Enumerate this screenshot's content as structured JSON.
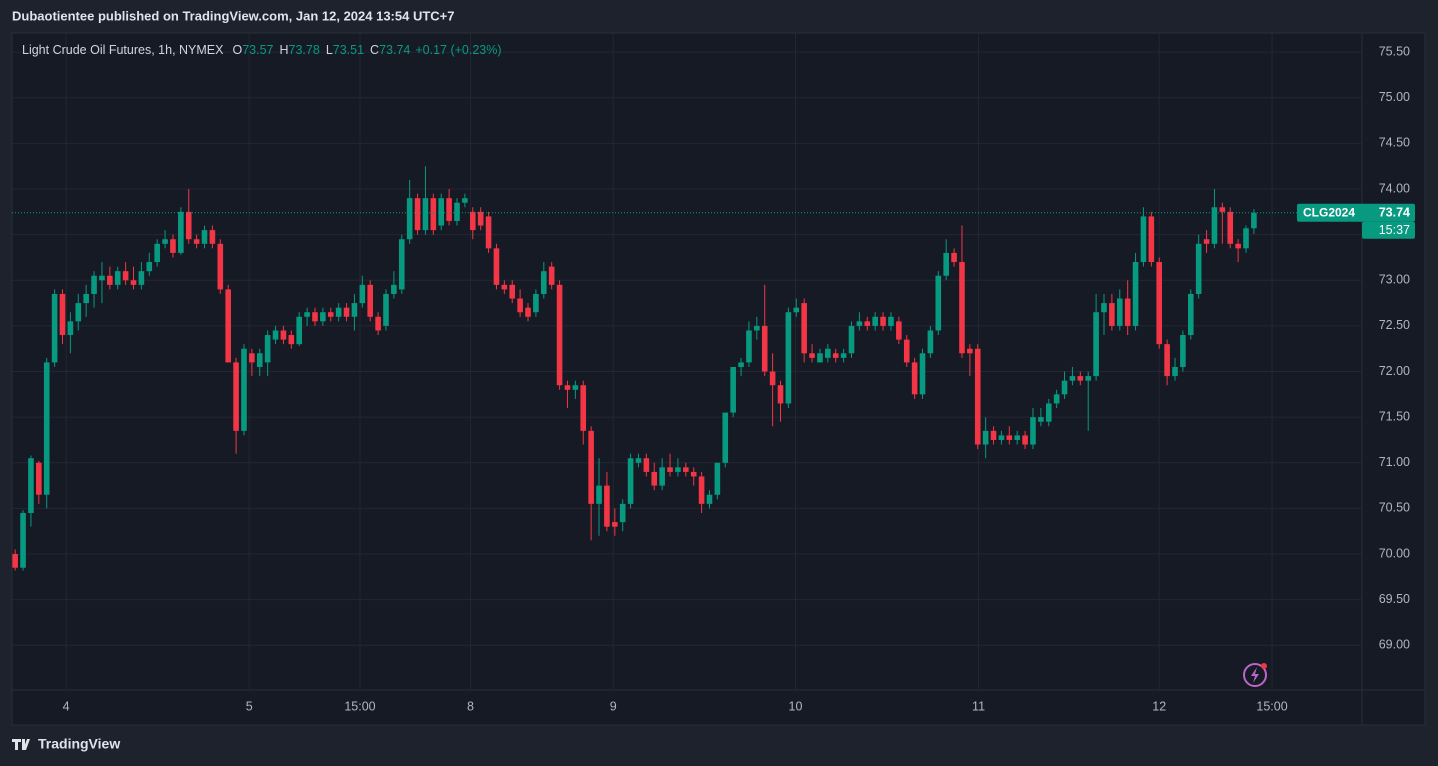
{
  "header": "Dubaotientee published on TradingView.com, Jan 12, 2024 13:54 UTC+7",
  "footer": "TradingView",
  "chart_data": {
    "type": "candlestick",
    "title": "Light Crude Oil Futures, 1h, NYMEX",
    "ohlc_labels": [
      "O",
      "H",
      "L",
      "C"
    ],
    "change_label": "+0.17 (+0.23%)",
    "countdown": "15:37",
    "series": [
      {
        "name": "CLG2024",
        "up_color": "#089981",
        "down_color": "#f23645",
        "open": [
          70.0,
          69.85,
          70.45,
          71.0,
          70.65,
          72.1,
          72.85,
          72.4,
          72.55,
          72.75,
          72.85,
          73.0,
          73.05,
          72.95,
          73.1,
          73.0,
          72.95,
          73.1,
          73.2,
          73.4,
          73.45,
          73.3,
          73.75,
          73.45,
          73.4,
          73.55,
          73.4,
          72.9,
          72.1,
          71.35,
          72.2,
          72.05,
          72.1,
          72.35,
          72.45,
          72.4,
          72.3,
          72.6,
          72.65,
          72.55,
          72.65,
          72.6,
          72.7,
          72.6,
          72.75,
          72.95,
          72.6,
          72.5,
          72.85,
          72.9,
          73.45,
          73.9,
          73.55,
          73.9,
          73.6,
          73.9,
          73.65,
          73.85,
          73.75,
          73.75,
          73.7,
          73.35,
          72.95,
          72.95,
          72.8,
          72.7,
          72.65,
          72.85,
          73.15,
          72.95,
          71.85,
          71.8,
          71.85,
          71.35,
          70.55,
          70.75,
          70.35,
          70.35,
          70.55,
          71.0,
          71.05,
          70.9,
          70.75,
          70.95,
          70.9,
          70.95,
          70.9,
          70.85,
          70.55,
          70.65,
          71.0,
          71.55,
          72.05,
          72.1,
          72.45,
          72.5,
          72.0,
          71.85,
          71.65,
          72.65,
          72.75,
          72.2,
          72.1,
          72.15,
          72.2,
          72.15,
          72.2,
          72.5,
          72.55,
          72.5,
          72.6,
          72.5,
          72.55,
          72.35,
          72.1,
          71.75,
          72.2,
          72.45,
          73.05,
          73.3,
          73.2,
          72.25,
          72.25,
          71.2,
          71.35,
          71.25,
          71.3,
          71.25,
          71.3,
          71.2,
          71.45,
          71.45,
          71.65,
          71.75,
          71.9,
          71.95,
          71.9,
          71.95,
          72.65,
          72.75,
          72.5,
          72.8,
          72.5,
          73.2,
          73.7,
          73.2,
          72.3,
          71.95,
          72.05,
          72.4,
          72.85,
          73.45,
          73.4,
          73.8,
          73.75,
          73.4,
          73.35,
          73.57
        ],
        "high": [
          70.05,
          70.48,
          71.08,
          71.02,
          72.15,
          72.9,
          72.9,
          72.65,
          72.85,
          72.95,
          73.1,
          73.2,
          73.15,
          73.15,
          73.2,
          73.15,
          73.2,
          73.3,
          73.45,
          73.55,
          73.5,
          73.8,
          74.0,
          73.5,
          73.6,
          73.6,
          73.45,
          72.95,
          72.15,
          72.3,
          72.25,
          72.25,
          72.45,
          72.5,
          72.5,
          72.45,
          72.65,
          72.7,
          72.7,
          72.7,
          72.7,
          72.75,
          72.75,
          72.85,
          73.05,
          73.0,
          72.65,
          72.9,
          73.1,
          73.5,
          74.1,
          73.95,
          74.25,
          73.95,
          73.95,
          74.0,
          73.9,
          73.95,
          73.8,
          73.8,
          73.75,
          73.4,
          73.0,
          73.0,
          72.9,
          72.75,
          72.9,
          73.2,
          73.2,
          73.0,
          71.9,
          71.9,
          71.9,
          71.4,
          71.05,
          70.9,
          70.5,
          70.6,
          71.1,
          71.1,
          71.1,
          71.0,
          71.05,
          71.1,
          71.05,
          71.0,
          70.95,
          70.9,
          70.7,
          71.0,
          71.55,
          72.05,
          72.15,
          72.55,
          72.6,
          72.95,
          72.2,
          71.9,
          72.7,
          72.8,
          72.8,
          72.3,
          72.25,
          72.3,
          72.25,
          72.25,
          72.55,
          72.65,
          72.6,
          72.65,
          72.65,
          72.65,
          72.6,
          72.4,
          72.15,
          72.25,
          72.5,
          73.1,
          73.45,
          73.35,
          73.6,
          72.3,
          72.3,
          71.5,
          71.4,
          71.35,
          71.4,
          71.35,
          71.35,
          71.6,
          71.6,
          71.7,
          71.8,
          72.0,
          72.05,
          72.0,
          72.0,
          72.85,
          72.85,
          72.85,
          72.9,
          73.0,
          73.3,
          73.8,
          73.75,
          73.25,
          72.35,
          72.15,
          72.45,
          72.9,
          73.5,
          73.55,
          74.0,
          73.85,
          73.8,
          73.45,
          73.6,
          73.78
        ],
        "low": [
          69.82,
          69.82,
          70.3,
          70.55,
          70.5,
          72.05,
          72.3,
          72.2,
          72.45,
          72.6,
          72.7,
          72.75,
          72.9,
          72.9,
          72.95,
          72.9,
          72.9,
          73.05,
          73.15,
          73.35,
          73.25,
          73.28,
          73.4,
          73.35,
          73.35,
          73.35,
          72.85,
          72.1,
          71.1,
          71.3,
          71.95,
          71.95,
          71.95,
          72.3,
          72.3,
          72.25,
          72.28,
          72.5,
          72.5,
          72.5,
          72.55,
          72.55,
          72.55,
          72.45,
          72.7,
          72.55,
          72.4,
          72.45,
          72.8,
          72.85,
          73.4,
          73.5,
          73.5,
          73.5,
          73.55,
          73.6,
          73.6,
          73.8,
          73.45,
          73.55,
          73.3,
          72.9,
          72.85,
          72.75,
          72.6,
          72.55,
          72.6,
          72.8,
          72.9,
          71.8,
          71.6,
          71.7,
          71.2,
          70.15,
          70.2,
          70.25,
          70.2,
          70.25,
          70.5,
          70.95,
          70.85,
          70.7,
          70.7,
          70.85,
          70.85,
          70.85,
          70.75,
          70.45,
          70.5,
          70.6,
          70.95,
          71.5,
          71.95,
          72.05,
          72.35,
          71.95,
          71.4,
          71.45,
          71.6,
          72.6,
          72.1,
          72.1,
          72.1,
          72.1,
          72.1,
          72.1,
          72.15,
          72.45,
          72.45,
          72.45,
          72.45,
          72.45,
          72.3,
          72.05,
          71.7,
          71.7,
          72.15,
          72.4,
          73.0,
          73.15,
          72.15,
          71.95,
          71.15,
          71.05,
          71.2,
          71.2,
          71.2,
          71.2,
          71.15,
          71.15,
          71.4,
          71.4,
          71.6,
          71.7,
          71.85,
          71.85,
          71.35,
          71.9,
          72.4,
          72.45,
          72.45,
          72.4,
          72.45,
          73.15,
          73.15,
          72.25,
          71.85,
          71.9,
          72.0,
          72.35,
          72.8,
          73.3,
          73.35,
          73.4,
          73.35,
          73.2,
          73.3,
          73.51
        ],
        "close": [
          69.85,
          70.45,
          71.05,
          70.65,
          72.1,
          72.85,
          72.4,
          72.55,
          72.75,
          72.85,
          73.05,
          73.05,
          72.95,
          73.1,
          73.0,
          72.95,
          73.1,
          73.2,
          73.4,
          73.45,
          73.3,
          73.75,
          73.45,
          73.4,
          73.55,
          73.4,
          72.9,
          72.1,
          71.35,
          72.25,
          72.1,
          72.2,
          72.4,
          72.45,
          72.35,
          72.3,
          72.6,
          72.65,
          72.55,
          72.65,
          72.6,
          72.7,
          72.6,
          72.75,
          72.95,
          72.6,
          72.45,
          72.85,
          72.95,
          73.45,
          73.9,
          73.55,
          73.9,
          73.55,
          73.9,
          73.65,
          73.85,
          73.9,
          73.55,
          73.6,
          73.35,
          72.95,
          72.9,
          72.8,
          72.65,
          72.6,
          72.85,
          73.1,
          72.95,
          71.85,
          71.8,
          71.85,
          71.35,
          70.55,
          70.75,
          70.3,
          70.3,
          70.55,
          71.05,
          71.05,
          70.9,
          70.75,
          70.95,
          70.9,
          70.95,
          70.9,
          70.85,
          70.55,
          70.65,
          71.0,
          71.55,
          72.05,
          72.1,
          72.45,
          72.5,
          72.0,
          71.85,
          71.65,
          72.65,
          72.7,
          72.2,
          72.15,
          72.2,
          72.25,
          72.15,
          72.2,
          72.5,
          72.55,
          72.5,
          72.6,
          72.5,
          72.6,
          72.35,
          72.1,
          71.75,
          72.2,
          72.45,
          73.05,
          73.3,
          73.2,
          72.2,
          72.2,
          71.2,
          71.35,
          71.25,
          71.3,
          71.25,
          71.3,
          71.2,
          71.5,
          71.5,
          71.65,
          71.75,
          71.9,
          71.95,
          71.9,
          71.95,
          72.65,
          72.75,
          72.5,
          72.8,
          72.5,
          73.2,
          73.7,
          73.2,
          72.3,
          71.95,
          72.05,
          72.4,
          72.85,
          73.4,
          73.4,
          73.8,
          73.75,
          73.4,
          73.35,
          73.57,
          73.74
        ]
      }
    ],
    "xlim": [
      -0.4,
      170.7
    ],
    "xticks": [
      {
        "value": 6.46,
        "label": "4"
      },
      {
        "value": 29.66,
        "label": "5"
      },
      {
        "value": 43.7,
        "label": "15:00"
      },
      {
        "value": 57.7,
        "label": "8"
      },
      {
        "value": 75.8,
        "label": "9"
      },
      {
        "value": 98.9,
        "label": "10"
      },
      {
        "value": 122.1,
        "label": "11"
      },
      {
        "value": 145.0,
        "label": "12"
      },
      {
        "value": 159.3,
        "label": "15:00"
      }
    ],
    "ylim": [
      68.51,
      75.71
    ],
    "yticks": [
      {
        "value": 69,
        "label": "69.00"
      },
      {
        "value": 69.5,
        "label": "69.50"
      },
      {
        "value": 70,
        "label": "70.00"
      },
      {
        "value": 70.5,
        "label": "70.50"
      },
      {
        "value": 71,
        "label": "71.00"
      },
      {
        "value": 71.5,
        "label": "71.50"
      },
      {
        "value": 72,
        "label": "72.00"
      },
      {
        "value": 72.5,
        "label": "72.50"
      },
      {
        "value": 73,
        "label": "73.00"
      },
      {
        "value": 73.5,
        "label": "73.50"
      },
      {
        "value": 74,
        "label": "74.00"
      },
      {
        "value": 74.5,
        "label": "74.50"
      },
      {
        "value": 75,
        "label": "75.00"
      },
      {
        "value": 75.5,
        "label": "75.50"
      }
    ],
    "grid": true
  }
}
